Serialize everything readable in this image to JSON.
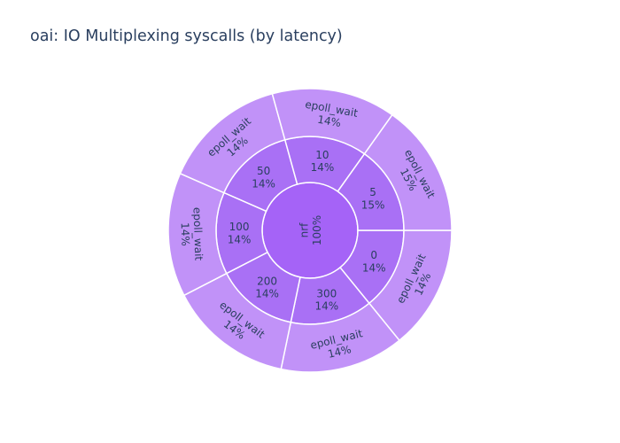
{
  "chart_data": {
    "type": "sunburst",
    "title": "oai: IO Multiplexing syscalls (by latency)",
    "root": {
      "label": "nrf",
      "percent": "100%"
    },
    "segments": [
      {
        "label": "0",
        "percent": "14%",
        "value": 14,
        "child": {
          "label": "epoll_wait",
          "percent": "14%",
          "value": 14
        }
      },
      {
        "label": "300",
        "percent": "14%",
        "value": 14,
        "child": {
          "label": "epoll_wait",
          "percent": "14%",
          "value": 14
        }
      },
      {
        "label": "200",
        "percent": "14%",
        "value": 14,
        "child": {
          "label": "epoll_wait",
          "percent": "14%",
          "value": 14
        }
      },
      {
        "label": "100",
        "percent": "14%",
        "value": 14,
        "child": {
          "label": "epoll_wait",
          "percent": "14%",
          "value": 14
        }
      },
      {
        "label": "50",
        "percent": "14%",
        "value": 14,
        "child": {
          "label": "epoll_wait",
          "percent": "14%",
          "value": 14
        }
      },
      {
        "label": "10",
        "percent": "14%",
        "value": 14,
        "child": {
          "label": "epoll_wait",
          "percent": "14%",
          "value": 14
        }
      },
      {
        "label": "5",
        "percent": "15%",
        "value": 15,
        "child": {
          "label": "epoll_wait",
          "percent": "15%",
          "value": 15
        }
      }
    ],
    "colors": {
      "root": "#a563f7",
      "ring1": "#a970f5",
      "ring2": "#c192f8",
      "stroke": "#ffffff"
    }
  }
}
